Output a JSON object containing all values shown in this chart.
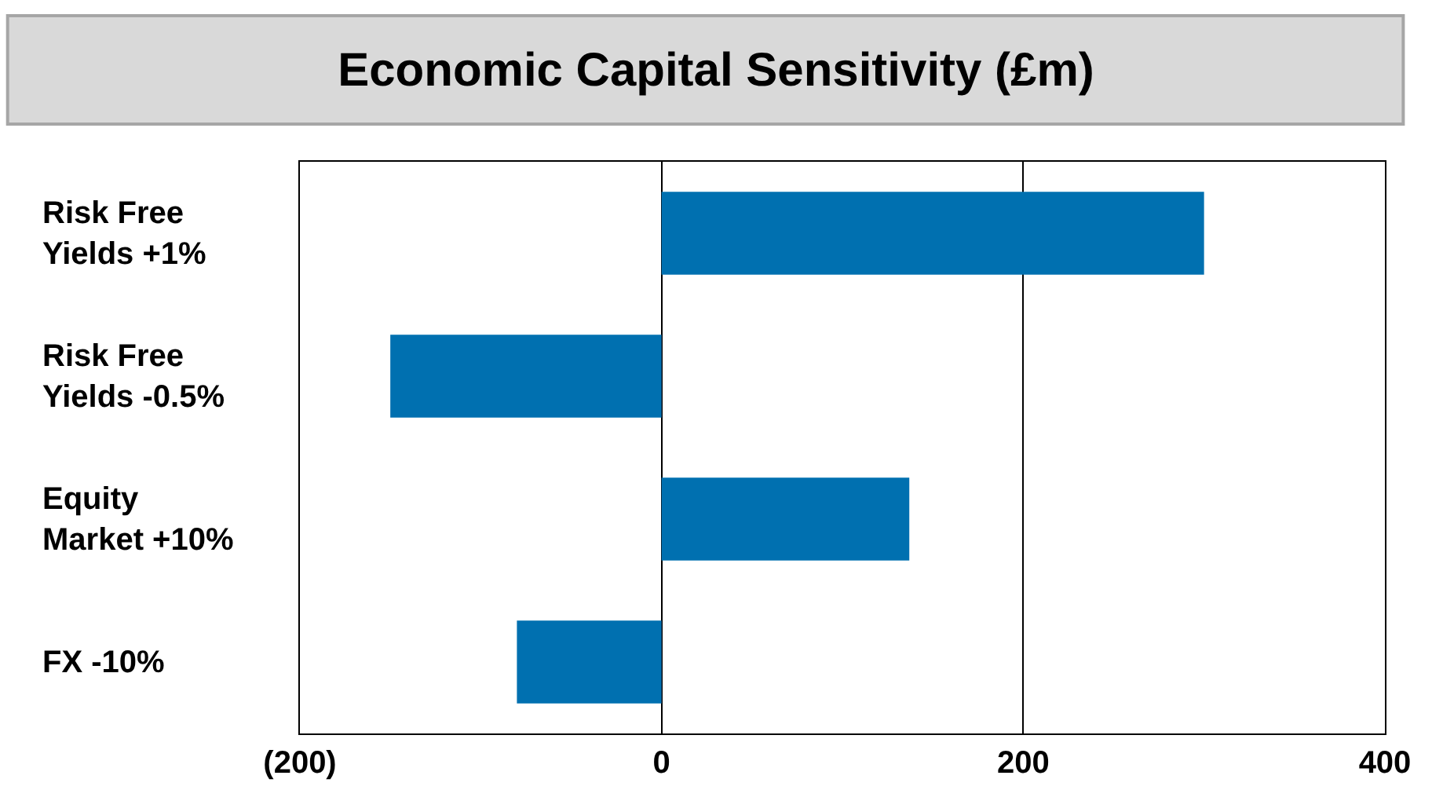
{
  "chart_data": {
    "type": "bar",
    "orientation": "horizontal",
    "title": "Economic Capital Sensitivity (£m)",
    "categories": [
      "Risk Free Yields +1%",
      "Risk Free Yields -0.5%",
      "Equity Market +10%",
      "FX -10%"
    ],
    "values": [
      300,
      -150,
      137,
      -80
    ],
    "color": "#0070b0",
    "xlim": [
      -200,
      400
    ],
    "xticks": [
      {
        "value": -200,
        "label": "(200)"
      },
      0,
      200,
      400
    ],
    "grid": "x",
    "legend": false
  }
}
